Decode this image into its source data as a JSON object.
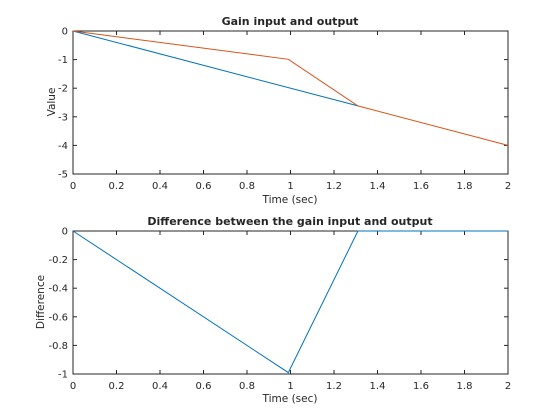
{
  "chart_data": [
    {
      "type": "line",
      "title": "Gain input and output",
      "xlabel": "Time (sec)",
      "ylabel": "Value",
      "xlim": [
        0,
        2
      ],
      "ylim": [
        -5,
        0
      ],
      "xticks": [
        "0",
        "0.2",
        "0.4",
        "0.6",
        "0.8",
        "1",
        "1.2",
        "1.4",
        "1.6",
        "1.8",
        "2"
      ],
      "yticks": [
        "-5",
        "-4",
        "-3",
        "-2",
        "-1",
        "0"
      ],
      "grid": false,
      "series": [
        {
          "color": "#0072BD",
          "x": [
            0,
            1.31
          ],
          "y": [
            0,
            -2.62
          ]
        },
        {
          "color": "#D95319",
          "x": [
            0,
            0.99,
            1.31,
            2
          ],
          "y": [
            0,
            -0.99,
            -2.62,
            -4.0
          ]
        }
      ]
    },
    {
      "type": "line",
      "title": "Difference between the gain input and output",
      "xlabel": "Time (sec)",
      "ylabel": "Difference",
      "xlim": [
        0,
        2
      ],
      "ylim": [
        -1,
        0
      ],
      "xticks": [
        "0",
        "0.2",
        "0.4",
        "0.6",
        "0.8",
        "1",
        "1.2",
        "1.4",
        "1.6",
        "1.8",
        "2"
      ],
      "yticks": [
        "-1",
        "-0.8",
        "-0.6",
        "-0.4",
        "-0.2",
        "0"
      ],
      "grid": false,
      "series": [
        {
          "color": "#0072BD",
          "x": [
            0,
            0.99,
            1.31,
            2
          ],
          "y": [
            0,
            -0.99,
            0,
            0
          ]
        }
      ]
    }
  ]
}
